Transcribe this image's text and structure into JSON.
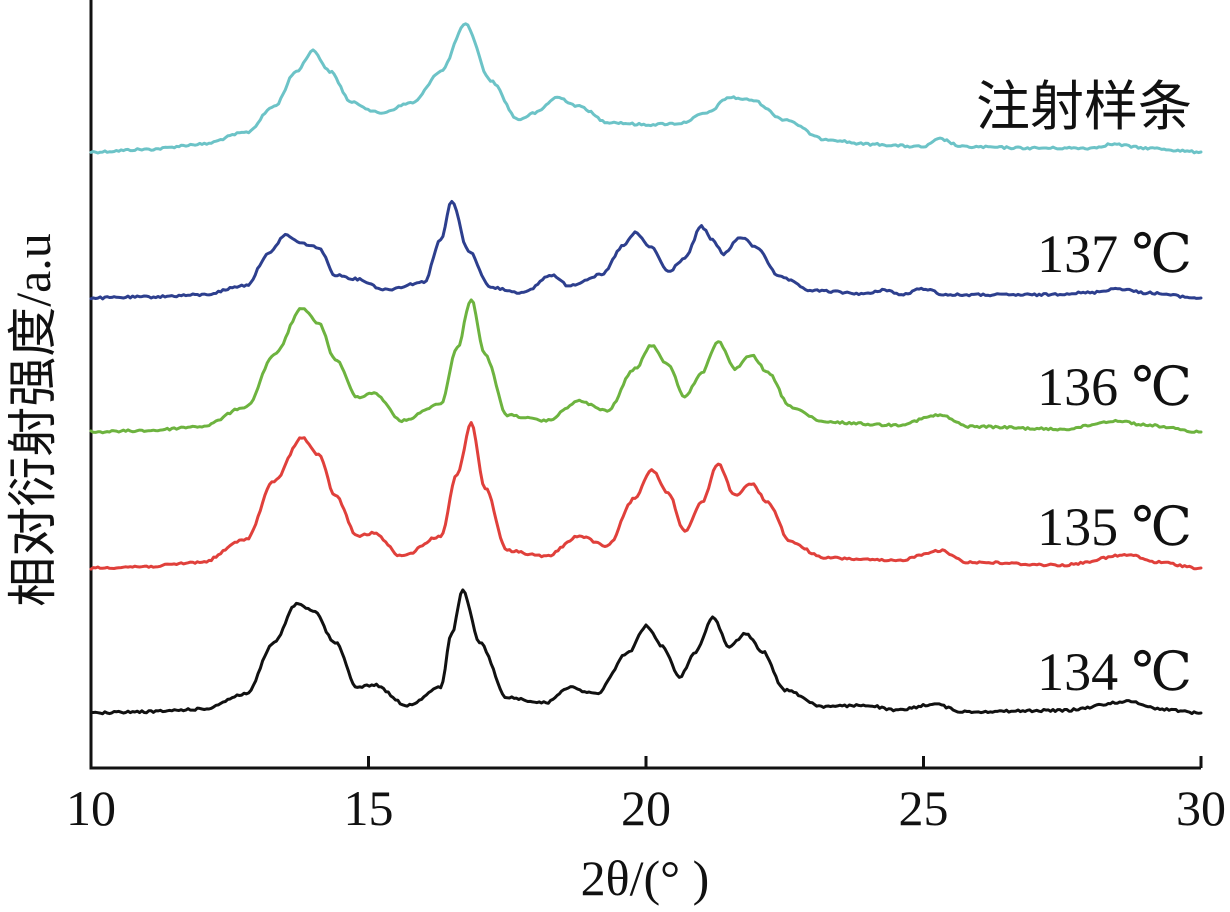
{
  "chart_data": {
    "type": "line",
    "title": "",
    "xlabel": "2θ/(° )",
    "ylabel": "相对衍射强度/a.u",
    "xlim": [
      10,
      30
    ],
    "x_ticks": [
      "10",
      "15",
      "20",
      "25",
      "30"
    ],
    "y_ticks": [],
    "grid": false,
    "legend": "labels at right end of each curve",
    "series": [
      {
        "name": "注射样条",
        "color": "#6cc3c7",
        "points": [
          [
            10,
            0.0
          ],
          [
            11,
            0.02
          ],
          [
            12,
            0.06
          ],
          [
            12.8,
            0.15
          ],
          [
            13.3,
            0.35
          ],
          [
            13.7,
            0.62
          ],
          [
            14.0,
            0.78
          ],
          [
            14.3,
            0.62
          ],
          [
            14.7,
            0.38
          ],
          [
            15.2,
            0.3
          ],
          [
            15.8,
            0.38
          ],
          [
            16.3,
            0.62
          ],
          [
            16.75,
            0.98
          ],
          [
            17.2,
            0.55
          ],
          [
            17.7,
            0.25
          ],
          [
            18.0,
            0.3
          ],
          [
            18.4,
            0.42
          ],
          [
            18.8,
            0.35
          ],
          [
            19.3,
            0.23
          ],
          [
            20.0,
            0.21
          ],
          [
            20.6,
            0.22
          ],
          [
            21.1,
            0.3
          ],
          [
            21.5,
            0.42
          ],
          [
            21.9,
            0.4
          ],
          [
            22.5,
            0.25
          ],
          [
            23.2,
            0.1
          ],
          [
            24.0,
            0.06
          ],
          [
            25.0,
            0.04
          ],
          [
            25.3,
            0.1
          ],
          [
            25.7,
            0.04
          ],
          [
            27.0,
            0.03
          ],
          [
            28.0,
            0.03
          ],
          [
            28.4,
            0.06
          ],
          [
            29.0,
            0.03
          ],
          [
            30,
            0.0
          ]
        ]
      },
      {
        "name": "137 ℃",
        "color": "#2d3f8e",
        "points": [
          [
            10,
            0.0
          ],
          [
            11,
            0.01
          ],
          [
            12,
            0.03
          ],
          [
            12.8,
            0.12
          ],
          [
            13.2,
            0.42
          ],
          [
            13.5,
            0.6
          ],
          [
            13.8,
            0.52
          ],
          [
            14.1,
            0.48
          ],
          [
            14.4,
            0.22
          ],
          [
            14.8,
            0.18
          ],
          [
            15.3,
            0.08
          ],
          [
            16.0,
            0.15
          ],
          [
            16.3,
            0.55
          ],
          [
            16.5,
            0.92
          ],
          [
            16.8,
            0.45
          ],
          [
            17.2,
            0.1
          ],
          [
            17.8,
            0.05
          ],
          [
            18.3,
            0.22
          ],
          [
            18.6,
            0.12
          ],
          [
            19.2,
            0.22
          ],
          [
            19.6,
            0.5
          ],
          [
            19.8,
            0.62
          ],
          [
            20.1,
            0.48
          ],
          [
            20.4,
            0.25
          ],
          [
            20.7,
            0.38
          ],
          [
            21.0,
            0.68
          ],
          [
            21.2,
            0.55
          ],
          [
            21.4,
            0.42
          ],
          [
            21.7,
            0.58
          ],
          [
            22.0,
            0.48
          ],
          [
            22.4,
            0.2
          ],
          [
            23.0,
            0.07
          ],
          [
            24.0,
            0.04
          ],
          [
            24.3,
            0.08
          ],
          [
            24.6,
            0.03
          ],
          [
            25.0,
            0.09
          ],
          [
            25.4,
            0.03
          ],
          [
            27.0,
            0.03
          ],
          [
            28.0,
            0.05
          ],
          [
            28.5,
            0.09
          ],
          [
            29.0,
            0.05
          ],
          [
            30,
            0.0
          ]
        ]
      },
      {
        "name": "136 ℃",
        "color": "#6db33f",
        "points": [
          [
            10,
            0.0
          ],
          [
            11,
            0.01
          ],
          [
            12,
            0.04
          ],
          [
            12.8,
            0.18
          ],
          [
            13.3,
            0.55
          ],
          [
            13.8,
            0.88
          ],
          [
            14.1,
            0.78
          ],
          [
            14.4,
            0.52
          ],
          [
            14.8,
            0.25
          ],
          [
            15.1,
            0.28
          ],
          [
            15.6,
            0.08
          ],
          [
            16.3,
            0.2
          ],
          [
            16.6,
            0.6
          ],
          [
            16.85,
            0.95
          ],
          [
            17.1,
            0.55
          ],
          [
            17.5,
            0.12
          ],
          [
            18.2,
            0.08
          ],
          [
            18.8,
            0.22
          ],
          [
            19.3,
            0.15
          ],
          [
            19.8,
            0.45
          ],
          [
            20.1,
            0.62
          ],
          [
            20.4,
            0.48
          ],
          [
            20.7,
            0.25
          ],
          [
            21.0,
            0.42
          ],
          [
            21.3,
            0.65
          ],
          [
            21.6,
            0.45
          ],
          [
            21.9,
            0.55
          ],
          [
            22.2,
            0.42
          ],
          [
            22.6,
            0.18
          ],
          [
            23.2,
            0.07
          ],
          [
            24.5,
            0.05
          ],
          [
            25.3,
            0.12
          ],
          [
            25.8,
            0.04
          ],
          [
            27.5,
            0.02
          ],
          [
            28.5,
            0.08
          ],
          [
            29.0,
            0.05
          ],
          [
            30,
            0.0
          ]
        ]
      },
      {
        "name": "135 ℃",
        "color": "#e0403b",
        "points": [
          [
            10,
            0.0
          ],
          [
            11,
            0.01
          ],
          [
            12,
            0.04
          ],
          [
            12.8,
            0.2
          ],
          [
            13.3,
            0.6
          ],
          [
            13.8,
            0.9
          ],
          [
            14.1,
            0.78
          ],
          [
            14.4,
            0.5
          ],
          [
            14.8,
            0.22
          ],
          [
            15.1,
            0.24
          ],
          [
            15.6,
            0.08
          ],
          [
            16.3,
            0.22
          ],
          [
            16.6,
            0.65
          ],
          [
            16.85,
            1.0
          ],
          [
            17.1,
            0.55
          ],
          [
            17.5,
            0.12
          ],
          [
            18.2,
            0.08
          ],
          [
            18.8,
            0.22
          ],
          [
            19.3,
            0.15
          ],
          [
            19.8,
            0.48
          ],
          [
            20.1,
            0.68
          ],
          [
            20.4,
            0.52
          ],
          [
            20.7,
            0.25
          ],
          [
            21.0,
            0.45
          ],
          [
            21.3,
            0.72
          ],
          [
            21.6,
            0.5
          ],
          [
            21.9,
            0.58
          ],
          [
            22.2,
            0.45
          ],
          [
            22.6,
            0.18
          ],
          [
            23.2,
            0.07
          ],
          [
            24.5,
            0.05
          ],
          [
            25.3,
            0.12
          ],
          [
            25.8,
            0.04
          ],
          [
            27.5,
            0.02
          ],
          [
            28.7,
            0.09
          ],
          [
            29.2,
            0.04
          ],
          [
            30,
            0.0
          ]
        ]
      },
      {
        "name": "134 ℃",
        "color": "#111111",
        "points": [
          [
            10,
            0.0
          ],
          [
            11,
            0.01
          ],
          [
            12,
            0.03
          ],
          [
            12.8,
            0.15
          ],
          [
            13.3,
            0.55
          ],
          [
            13.7,
            0.85
          ],
          [
            14.0,
            0.8
          ],
          [
            14.4,
            0.55
          ],
          [
            14.8,
            0.2
          ],
          [
            15.1,
            0.22
          ],
          [
            15.7,
            0.06
          ],
          [
            16.3,
            0.2
          ],
          [
            16.5,
            0.62
          ],
          [
            16.7,
            0.96
          ],
          [
            17.0,
            0.55
          ],
          [
            17.5,
            0.12
          ],
          [
            18.2,
            0.08
          ],
          [
            18.6,
            0.2
          ],
          [
            19.1,
            0.15
          ],
          [
            19.7,
            0.48
          ],
          [
            20.0,
            0.68
          ],
          [
            20.3,
            0.52
          ],
          [
            20.6,
            0.28
          ],
          [
            20.9,
            0.48
          ],
          [
            21.2,
            0.75
          ],
          [
            21.5,
            0.52
          ],
          [
            21.8,
            0.62
          ],
          [
            22.1,
            0.48
          ],
          [
            22.5,
            0.18
          ],
          [
            23.2,
            0.05
          ],
          [
            24.0,
            0.06
          ],
          [
            24.5,
            0.02
          ],
          [
            25.2,
            0.07
          ],
          [
            25.7,
            0.01
          ],
          [
            27.5,
            0.02
          ],
          [
            28.7,
            0.09
          ],
          [
            29.3,
            0.03
          ],
          [
            30,
            0.0
          ]
        ]
      }
    ]
  }
}
